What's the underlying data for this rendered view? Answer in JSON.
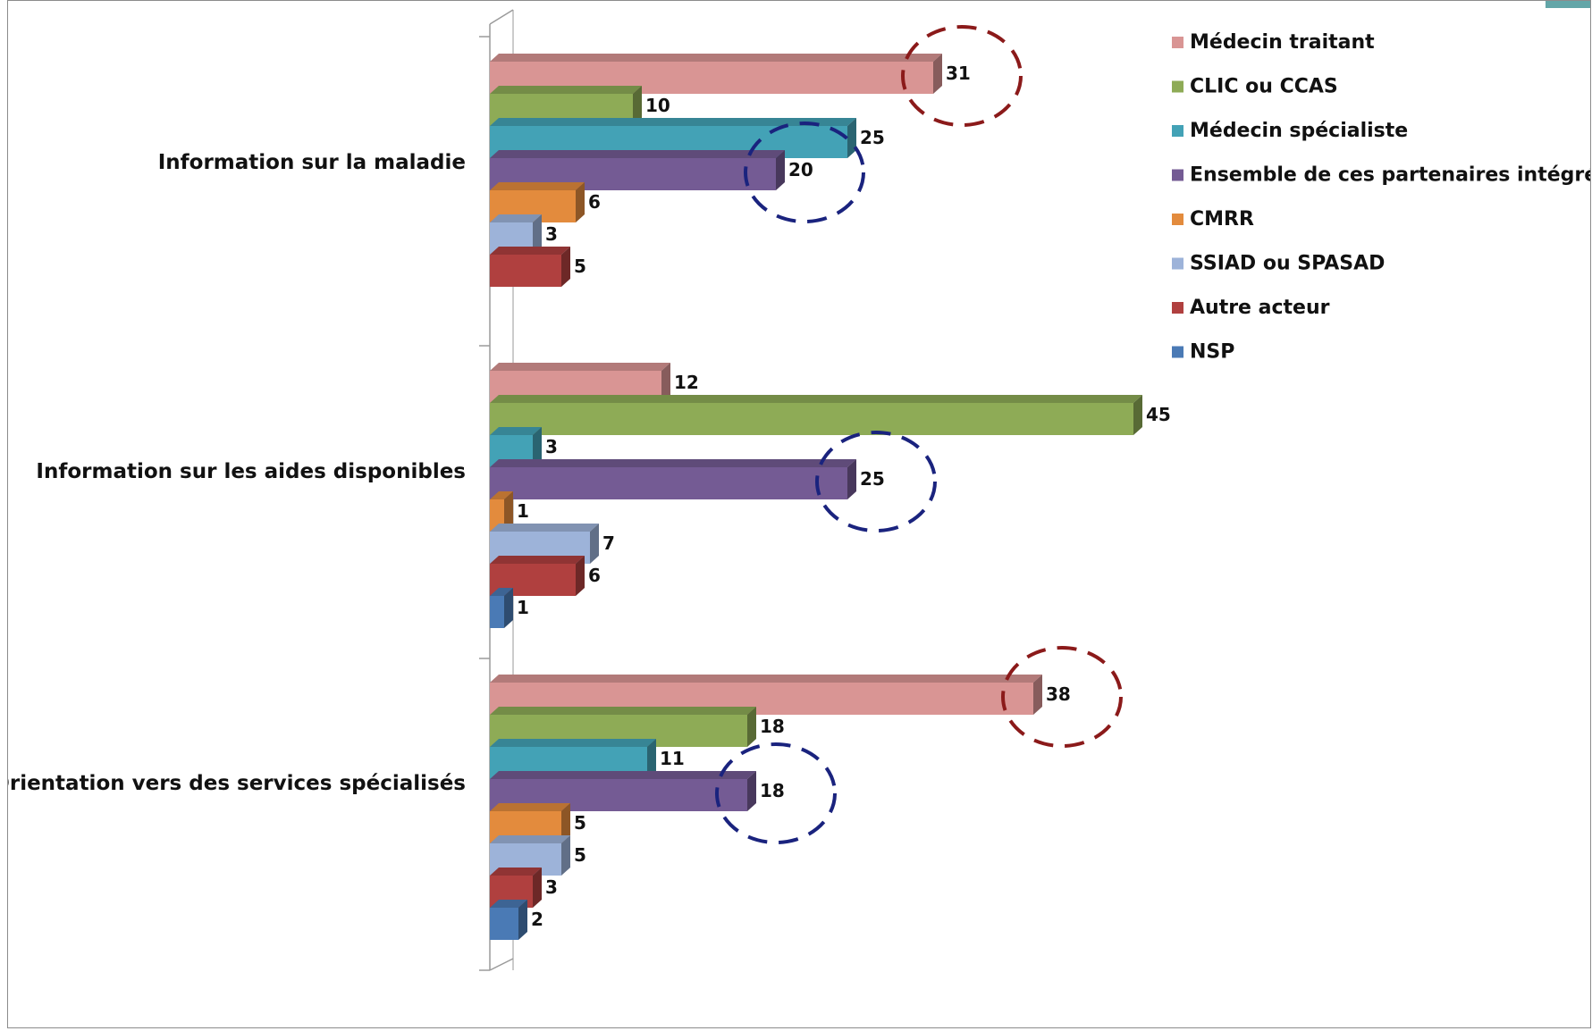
{
  "chart_data": {
    "type": "bar",
    "orientation": "horizontal",
    "style": "3d",
    "title": "",
    "xlabel": "",
    "ylabel": "",
    "xlim": [
      0,
      45
    ],
    "grid": false,
    "legend_position": "right",
    "categories": [
      "Information sur la maladie",
      "Information sur les aides disponibles",
      "Orientation vers des services spécialisés"
    ],
    "series": [
      {
        "name": "Médecin traitant",
        "color": "#d99594",
        "values": [
          31,
          12,
          38
        ]
      },
      {
        "name": "CLIC ou CCAS",
        "color": "#8eab56",
        "values": [
          10,
          45,
          18
        ]
      },
      {
        "name": "Médecin spécialiste",
        "color": "#43a2b6",
        "values": [
          25,
          3,
          11
        ]
      },
      {
        "name": "Ensemble de ces partenaires intégrés",
        "color": "#745b94",
        "values": [
          20,
          25,
          18
        ]
      },
      {
        "name": "CMRR",
        "color": "#e38b3d",
        "values": [
          6,
          1,
          5
        ]
      },
      {
        "name": "SSIAD ou SPASAD",
        "color": "#9db3d9",
        "values": [
          3,
          7,
          5
        ]
      },
      {
        "name": "Autre acteur",
        "color": "#b0403f",
        "values": [
          5,
          6,
          3
        ]
      },
      {
        "name": "NSP",
        "color": "#4a7ab5",
        "values": [
          null,
          1,
          2
        ]
      }
    ],
    "annotations": [
      {
        "type": "dashed-circle",
        "color": "#8b1a1a",
        "category": "Information sur la maladie",
        "series": "Médecin traitant"
      },
      {
        "type": "dashed-circle",
        "color": "#1a237e",
        "category": "Information sur la maladie",
        "series": "Ensemble de ces partenaires intégrés"
      },
      {
        "type": "dashed-circle",
        "color": "#1a237e",
        "category": "Information sur les aides disponibles",
        "series": "Ensemble de ces partenaires intégrés"
      },
      {
        "type": "dashed-circle",
        "color": "#8b1a1a",
        "category": "Orientation vers des services spécialisés",
        "series": "Médecin traitant"
      },
      {
        "type": "dashed-circle",
        "color": "#1a237e",
        "category": "Orientation vers des services spécialisés",
        "series": "Ensemble de ces partenaires intégrés"
      }
    ]
  }
}
